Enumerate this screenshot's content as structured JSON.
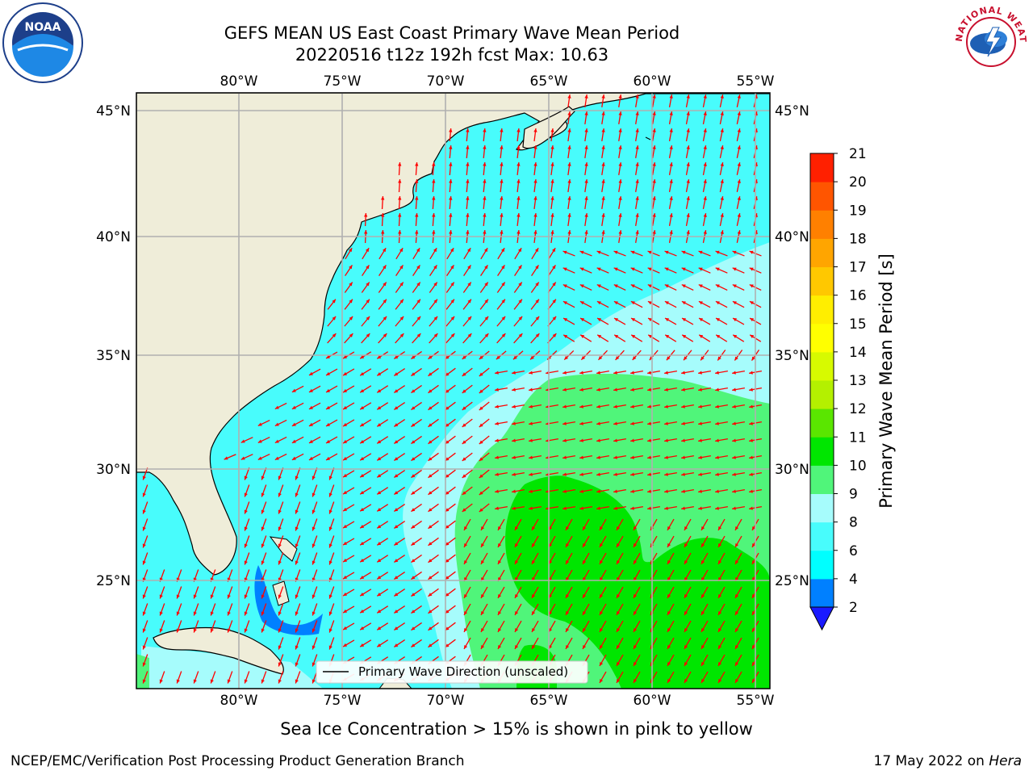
{
  "title": {
    "line1": "GEFS MEAN US East Coast Primary Wave Mean Period",
    "line2": "20220516 t12z 192h fcst   Max: 10.63"
  },
  "map": {
    "lon_labels": [
      "80°W",
      "75°W",
      "70°W",
      "65°W",
      "60°W",
      "55°W"
    ],
    "lat_labels": [
      "45°N",
      "40°N",
      "35°N",
      "30°N",
      "25°N"
    ],
    "legend_label": "Primary Wave Direction (unscaled)",
    "colors": {
      "land": "#efedd9",
      "period_4_6": "#00ffff",
      "period_6_8": "#48fcfc",
      "period_8_9": "#a6fcfc",
      "period_9_10": "#50f57a",
      "period_10_11": "#00e600",
      "period_2_4": "#0080ff",
      "arrow": "#ff0000",
      "grid": "#b0b0b0"
    }
  },
  "colorbar": {
    "label": "Primary Wave Mean Period [s]",
    "ticks": [
      "2",
      "4",
      "6",
      "8",
      "9",
      "10",
      "11",
      "12",
      "13",
      "14",
      "15",
      "16",
      "17",
      "18",
      "19",
      "20",
      "21"
    ],
    "colors": [
      "#0080ff",
      "#00ffff",
      "#48fcfc",
      "#a6fcfc",
      "#50f57a",
      "#00e600",
      "#5ae600",
      "#b4f000",
      "#d7fa00",
      "#ffff00",
      "#ffee00",
      "#ffc800",
      "#ffa500",
      "#ff8000",
      "#ff5500",
      "#ff2000"
    ],
    "extend_color": "#1a1aff"
  },
  "footer": {
    "sea_ice": "Sea Ice Concentration > 15% is shown in pink to yellow",
    "branch": "NCEP/EMC/Verification Post Processing Product Generation Branch",
    "date": "17 May 2022 on ",
    "host": "Hera"
  },
  "logos": {
    "noaa_text": "NOAA",
    "nws_text": "NATIONAL WEATHER SERVICE"
  }
}
